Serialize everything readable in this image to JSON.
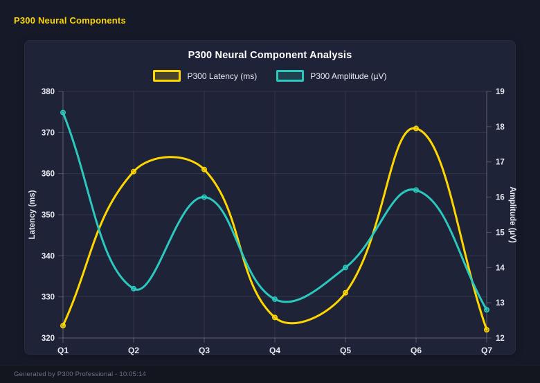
{
  "page": {
    "header_title": "P300 Neural Components",
    "footer_text": "Generated by P300 Professional - 10:05:14"
  },
  "chart": {
    "title": "P300 Neural Component Analysis"
  },
  "colors": {
    "accent": "#FFD700",
    "latency_line": "#FFD700",
    "amplitude_line": "#2BC8BE",
    "tick_text": "#E8EAF2",
    "grid_line": "rgba(255,255,255,0.09)",
    "axis_border": "rgba(255,255,255,0.22)"
  },
  "chart_data": {
    "type": "line",
    "title": "P300 Neural Component Analysis",
    "categories": [
      "Q1",
      "Q2",
      "Q3",
      "Q4",
      "Q5",
      "Q6",
      "Q7"
    ],
    "series": [
      {
        "name": "P300 Latency (ms)",
        "axis": "left",
        "color": "#FFD700",
        "values": [
          323,
          360.5,
          361,
          325,
          331,
          371,
          322
        ]
      },
      {
        "name": "P300 Amplitude (µV)",
        "axis": "right",
        "color": "#2BC8BE",
        "values": [
          18.4,
          13.4,
          16.0,
          13.1,
          14.0,
          16.2,
          12.8
        ]
      }
    ],
    "left_axis": {
      "label": "Latency (ms)",
      "min": 320,
      "max": 380,
      "step": 10,
      "ticks": [
        320,
        330,
        340,
        350,
        360,
        370,
        380
      ]
    },
    "right_axis": {
      "label": "Amplitude (µV)",
      "min": 12,
      "max": 19,
      "step": 1,
      "ticks": [
        12,
        13,
        14,
        15,
        16,
        17,
        18,
        19
      ]
    },
    "grid": true,
    "legend_position": "top",
    "curve": "smooth-tension-0.4"
  }
}
